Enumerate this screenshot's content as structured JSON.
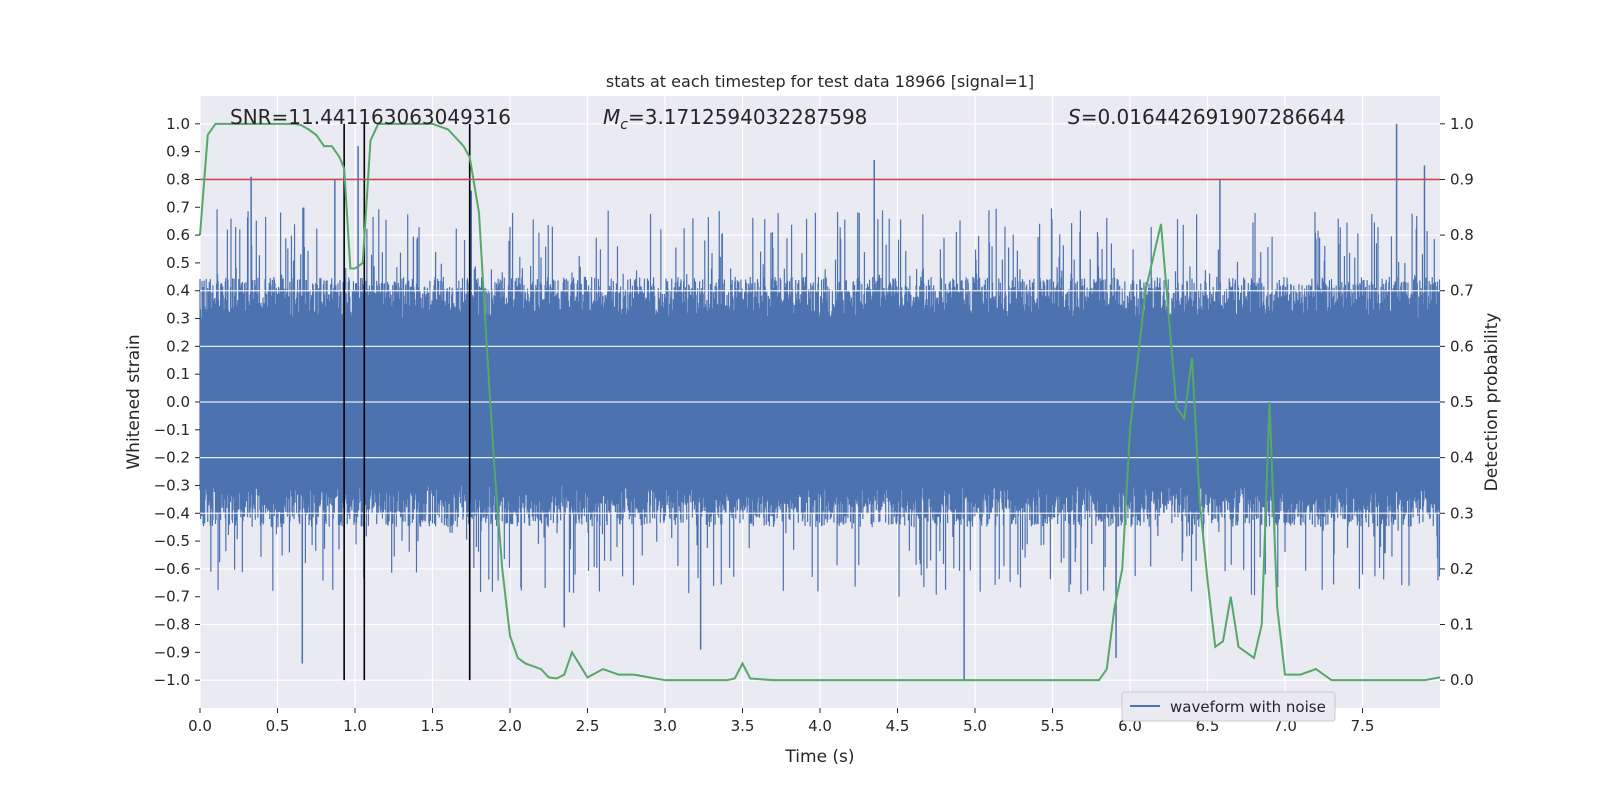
{
  "chart_data": {
    "type": "line",
    "title": "stats at each timestep for test data 18966 [signal=1]",
    "xlabel": "Time (s)",
    "ylabel": "Whitened strain",
    "y2label": "Detection probability",
    "xlim": [
      0.0,
      8.0
    ],
    "ylim": [
      -1.1,
      1.1
    ],
    "y2lim": [
      -0.05,
      1.05
    ],
    "xticks": [
      0.0,
      0.5,
      1.0,
      1.5,
      2.0,
      2.5,
      3.0,
      3.5,
      4.0,
      4.5,
      5.0,
      5.5,
      6.0,
      6.5,
      7.0,
      7.5
    ],
    "xtick_labels": [
      "0.0",
      "0.5",
      "1.0",
      "1.5",
      "2.0",
      "2.5",
      "3.0",
      "3.5",
      "4.0",
      "4.5",
      "5.0",
      "5.5",
      "6.0",
      "6.5",
      "7.0",
      "7.5"
    ],
    "yticks": [
      1.0,
      0.9,
      0.8,
      0.7,
      0.6,
      0.5,
      0.4,
      0.3,
      0.2,
      0.1,
      0.0,
      -0.1,
      -0.2,
      -0.3,
      -0.4,
      -0.5,
      -0.6,
      -0.7,
      -0.8,
      -0.9,
      -1.0
    ],
    "ytick_labels": [
      "1.0",
      "0.9",
      "0.8",
      "0.7",
      "0.6",
      "0.5",
      "0.4",
      "0.3",
      "0.2",
      "0.1",
      "0.0",
      "−0.1",
      "−0.2",
      "−0.3",
      "−0.4",
      "−0.5",
      "−0.6",
      "−0.7",
      "−0.8",
      "−0.9",
      "−1.0"
    ],
    "y2ticks": [
      1.0,
      0.9,
      0.8,
      0.7,
      0.6,
      0.5,
      0.4,
      0.3,
      0.2,
      0.1,
      0.0
    ],
    "y2tick_labels": [
      "1.0",
      "0.9",
      "0.8",
      "0.7",
      "0.6",
      "0.5",
      "0.4",
      "0.3",
      "0.2",
      "0.1",
      "0.0"
    ],
    "annotations": {
      "snr": "SNR=11.441163063049316",
      "mc_symbol": "M",
      "mc_sub": "c",
      "mc_value": "=3.1712594032287598",
      "s_symbol": "S",
      "s_value": "=0.016442691907286644"
    },
    "threshold": {
      "y2": 0.9,
      "color": "#c44e52"
    },
    "vertical_markers": [
      0.93,
      1.06,
      1.74
    ],
    "legend": {
      "label": "waveform with noise",
      "position": "lower-right"
    },
    "series": [
      {
        "name": "waveform with noise",
        "color": "#4c72b0",
        "axis": "left",
        "description": "dense noisy whitened strain, amplitude envelope approximately +/-0.45 with spikes to +/-1.0",
        "envelope_upper": 0.45,
        "envelope_lower": -0.45,
        "spikes": [
          [
            0.33,
            0.81
          ],
          [
            0.66,
            -0.94
          ],
          [
            0.87,
            0.8
          ],
          [
            1.02,
            0.92
          ],
          [
            1.75,
            0.76
          ],
          [
            2.35,
            -0.81
          ],
          [
            3.23,
            -0.89
          ],
          [
            4.35,
            0.87
          ],
          [
            4.93,
            -1.0
          ],
          [
            5.91,
            -0.92
          ],
          [
            6.58,
            0.8
          ],
          [
            7.72,
            1.0
          ],
          [
            7.9,
            0.85
          ]
        ]
      },
      {
        "name": "detection probability",
        "color": "#55a868",
        "axis": "right",
        "x": [
          0.0,
          0.05,
          0.1,
          0.15,
          0.2,
          0.3,
          0.4,
          0.5,
          0.6,
          0.65,
          0.7,
          0.75,
          0.8,
          0.85,
          0.9,
          0.93,
          0.97,
          1.0,
          1.05,
          1.1,
          1.15,
          1.2,
          1.3,
          1.4,
          1.5,
          1.6,
          1.7,
          1.74,
          1.8,
          1.85,
          1.9,
          1.95,
          2.0,
          2.05,
          2.1,
          2.2,
          2.25,
          2.3,
          2.35,
          2.4,
          2.5,
          2.6,
          2.7,
          2.8,
          3.0,
          3.2,
          3.4,
          3.45,
          3.5,
          3.55,
          3.7,
          3.9,
          4.2,
          4.6,
          5.0,
          5.4,
          5.8,
          5.85,
          5.9,
          5.95,
          6.0,
          6.1,
          6.2,
          6.3,
          6.35,
          6.4,
          6.45,
          6.5,
          6.55,
          6.6,
          6.65,
          6.7,
          6.8,
          6.85,
          6.9,
          6.95,
          7.0,
          7.1,
          7.2,
          7.3,
          7.5,
          7.6,
          7.7,
          7.9,
          8.0
        ],
        "values": [
          0.8,
          0.98,
          1.0,
          1.0,
          1.0,
          1.0,
          1.0,
          1.0,
          1.0,
          0.998,
          0.99,
          0.98,
          0.96,
          0.96,
          0.94,
          0.92,
          0.74,
          0.74,
          0.75,
          0.97,
          1.0,
          1.0,
          1.0,
          1.0,
          1.0,
          0.99,
          0.96,
          0.94,
          0.84,
          0.6,
          0.38,
          0.2,
          0.08,
          0.04,
          0.03,
          0.02,
          0.005,
          0.003,
          0.01,
          0.05,
          0.005,
          0.02,
          0.01,
          0.01,
          0.0,
          0.0,
          0.0,
          0.003,
          0.03,
          0.003,
          0.0,
          0.0,
          0.0,
          0.0,
          0.0,
          0.0,
          0.0,
          0.02,
          0.13,
          0.2,
          0.45,
          0.7,
          0.82,
          0.49,
          0.47,
          0.58,
          0.32,
          0.18,
          0.06,
          0.07,
          0.15,
          0.06,
          0.04,
          0.1,
          0.5,
          0.13,
          0.01,
          0.01,
          0.02,
          0.0,
          0.0,
          0.0,
          0.0,
          0.0,
          0.005
        ]
      }
    ]
  }
}
